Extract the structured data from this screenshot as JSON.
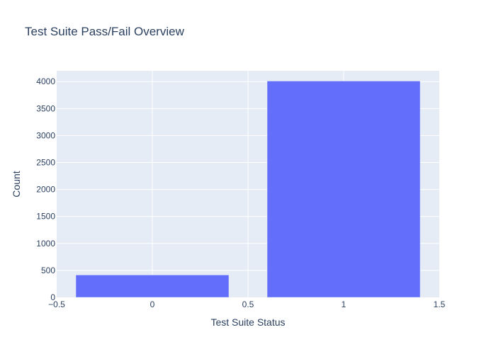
{
  "chart_data": {
    "type": "bar",
    "title": "Test Suite Pass/Fail Overview",
    "xlabel": "Test Suite Status",
    "ylabel": "Count",
    "x": [
      0,
      1
    ],
    "values": [
      415,
      4010
    ],
    "bar_width": 0.8,
    "xlim": [
      -0.5,
      1.5
    ],
    "ylim": [
      0,
      4200
    ],
    "xticks": [
      -0.5,
      0,
      0.5,
      1,
      1.5
    ],
    "xtick_labels": [
      "−0.5",
      "0",
      "0.5",
      "1",
      "1.5"
    ],
    "yticks": [
      0,
      500,
      1000,
      1500,
      2000,
      2500,
      3000,
      3500,
      4000
    ],
    "ytick_labels": [
      "0",
      "500",
      "1000",
      "1500",
      "2000",
      "2500",
      "3000",
      "3500",
      "4000"
    ],
    "grid": true,
    "colors": {
      "bar": "#636efa",
      "plot_bg": "#e5ecf6",
      "grid": "#ffffff",
      "text": "#2a3f5f"
    }
  }
}
